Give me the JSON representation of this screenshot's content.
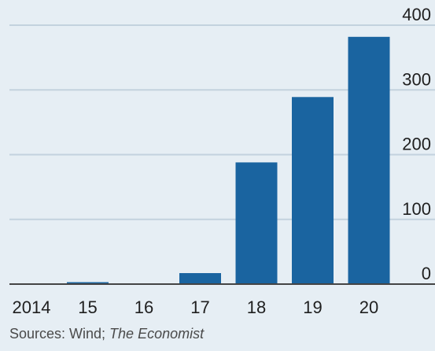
{
  "chart_data": {
    "type": "bar",
    "categories": [
      "2014",
      "15",
      "16",
      "17",
      "18",
      "19",
      "20"
    ],
    "values": [
      1,
      3,
      1,
      17,
      188,
      289,
      382
    ],
    "ylim": [
      0,
      400
    ],
    "yticks": [
      0,
      100,
      200,
      300,
      400
    ],
    "grid": true,
    "y_axis_side": "right",
    "bar_color": "#1a64a0",
    "grid_color": "#c3d2de",
    "baseline_color": "#444444"
  },
  "source": {
    "prefix": "Sources: Wind; ",
    "italic": "The Economist"
  }
}
